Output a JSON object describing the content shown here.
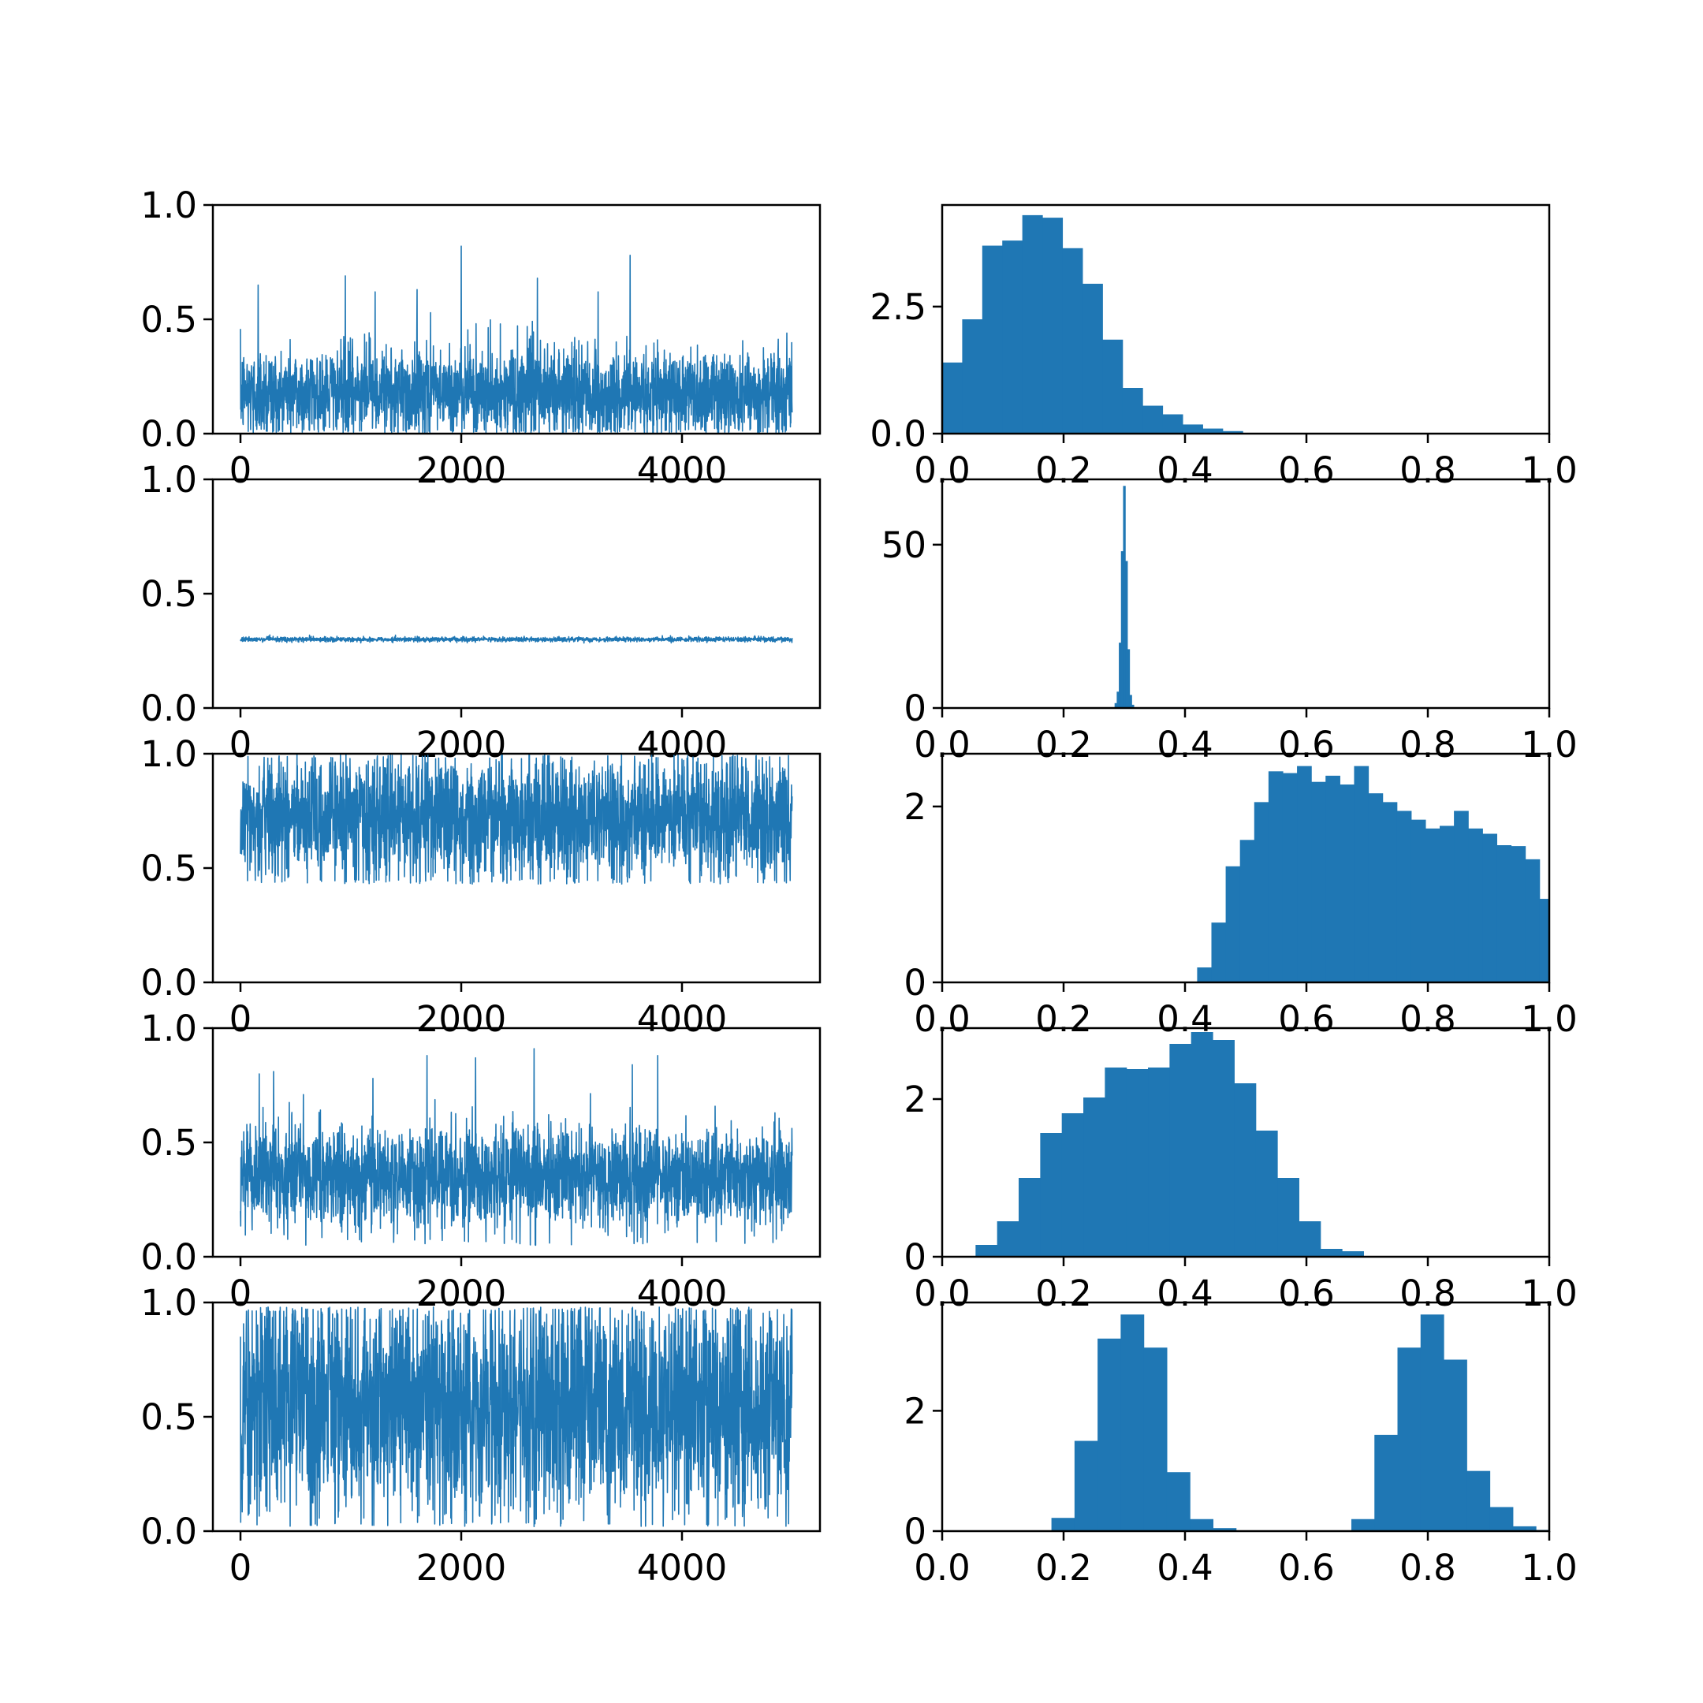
{
  "colors": {
    "series": "#1f77b4",
    "axes": "#000000",
    "background": "#ffffff"
  },
  "chart_data": [
    {
      "type": "line",
      "row": 0,
      "title": "",
      "xlabel": "",
      "ylabel": "",
      "xlim": [
        -250,
        5250
      ],
      "ylim": [
        0,
        1
      ],
      "grid": false,
      "xticks": [
        0,
        2000,
        4000
      ],
      "yticks": [
        0.0,
        0.5,
        1.0
      ],
      "xtick_labels": [
        "0",
        "2000",
        "4000"
      ],
      "ytick_labels": [
        "0.0",
        "0.5",
        "1.0"
      ],
      "n_samples": 5000,
      "trace_mean": 0.18,
      "trace_sd": 0.1,
      "trace_min": 0.0,
      "trace_max": 0.82,
      "spikes": [
        [
          160,
          0.65
        ],
        [
          950,
          0.69
        ],
        [
          1220,
          0.62
        ],
        [
          1600,
          0.63
        ],
        [
          2000,
          0.82
        ],
        [
          2690,
          0.68
        ],
        [
          3240,
          0.62
        ],
        [
          3530,
          0.78
        ],
        [
          4950,
          0.44
        ]
      ]
    },
    {
      "type": "bar",
      "row": 0,
      "title": "",
      "xlabel": "",
      "ylabel": "",
      "xlim": [
        0,
        1
      ],
      "ylim": [
        0,
        4.5
      ],
      "grid": false,
      "xticks": [
        0.0,
        0.2,
        0.4,
        0.6,
        0.8,
        1.0
      ],
      "yticks": [
        0.0,
        2.5
      ],
      "xtick_labels": [
        "0.0",
        "0.2",
        "0.4",
        "0.6",
        "0.8",
        "1.0"
      ],
      "ytick_labels": [
        "0.0",
        "2.5"
      ],
      "bin_edges": [
        0.0,
        0.033,
        0.066,
        0.099,
        0.132,
        0.165,
        0.198,
        0.231,
        0.264,
        0.297,
        0.33,
        0.363,
        0.396,
        0.429,
        0.462,
        0.495
      ],
      "values": [
        1.4,
        2.25,
        3.7,
        3.8,
        4.3,
        4.25,
        3.65,
        2.95,
        1.85,
        0.9,
        0.55,
        0.38,
        0.18,
        0.1,
        0.05
      ]
    },
    {
      "type": "line",
      "row": 1,
      "title": "",
      "xlabel": "",
      "ylabel": "",
      "xlim": [
        -250,
        5250
      ],
      "ylim": [
        0,
        1
      ],
      "grid": false,
      "xticks": [
        0,
        2000,
        4000
      ],
      "yticks": [
        0.0,
        0.5,
        1.0
      ],
      "xtick_labels": [
        "0",
        "2000",
        "4000"
      ],
      "ytick_labels": [
        "0.0",
        "0.5",
        "1.0"
      ],
      "n_samples": 5000,
      "trace_mean": 0.3,
      "trace_sd": 0.005,
      "trace_min": 0.28,
      "trace_max": 0.32,
      "spikes": []
    },
    {
      "type": "bar",
      "row": 1,
      "title": "",
      "xlabel": "",
      "ylabel": "",
      "xlim": [
        0,
        1
      ],
      "ylim": [
        0,
        70
      ],
      "grid": false,
      "xticks": [
        0.0,
        0.2,
        0.4,
        0.6,
        0.8,
        1.0
      ],
      "yticks": [
        0,
        50
      ],
      "xtick_labels": [
        "0.0",
        "0.2",
        "0.4",
        "0.6",
        "0.8",
        "1.0"
      ],
      "ytick_labels": [
        "0",
        "50"
      ],
      "bin_edges": [
        0.284,
        0.2875,
        0.291,
        0.2945,
        0.298,
        0.3015,
        0.305,
        0.3085,
        0.312,
        0.3155
      ],
      "values": [
        1.5,
        5,
        20,
        48,
        68,
        45,
        18,
        4,
        1
      ]
    },
    {
      "type": "line",
      "row": 2,
      "title": "",
      "xlabel": "",
      "ylabel": "",
      "xlim": [
        -250,
        5250
      ],
      "ylim": [
        0,
        1
      ],
      "grid": false,
      "xticks": [
        0,
        2000,
        4000
      ],
      "yticks": [
        0.0,
        0.5,
        1.0
      ],
      "xtick_labels": [
        "0",
        "2000",
        "4000"
      ],
      "ytick_labels": [
        "0.0",
        "0.5",
        "1.0"
      ],
      "n_samples": 5000,
      "trace_mean": 0.72,
      "trace_sd": 0.14,
      "trace_min": 0.43,
      "trace_max": 1.0,
      "spikes": []
    },
    {
      "type": "bar",
      "row": 2,
      "title": "",
      "xlabel": "",
      "ylabel": "",
      "xlim": [
        0,
        1
      ],
      "ylim": [
        0,
        2.6
      ],
      "grid": false,
      "xticks": [
        0.0,
        0.2,
        0.4,
        0.6,
        0.8,
        1.0
      ],
      "yticks": [
        0,
        2
      ],
      "xtick_labels": [
        "0.0",
        "0.2",
        "0.4",
        "0.6",
        "0.8",
        "1.0"
      ],
      "ytick_labels": [
        "0",
        "2"
      ],
      "bin_edges": [
        0.42,
        0.4435,
        0.467,
        0.4905,
        0.514,
        0.5375,
        0.561,
        0.5845,
        0.608,
        0.6315,
        0.655,
        0.6785,
        0.702,
        0.7255,
        0.749,
        0.7725,
        0.796,
        0.8195,
        0.843,
        0.8665,
        0.89,
        0.9135,
        0.937,
        0.9605,
        0.984,
        1.0
      ],
      "values": [
        0.17,
        0.68,
        1.32,
        1.62,
        2.05,
        2.4,
        2.38,
        2.46,
        2.28,
        2.35,
        2.25,
        2.46,
        2.15,
        2.05,
        1.95,
        1.85,
        1.75,
        1.78,
        1.95,
        1.75,
        1.69,
        1.56,
        1.55,
        1.4,
        0.95
      ]
    },
    {
      "type": "line",
      "row": 3,
      "title": "",
      "xlabel": "",
      "ylabel": "",
      "xlim": [
        -250,
        5250
      ],
      "ylim": [
        0,
        1
      ],
      "grid": false,
      "xticks": [
        0,
        2000,
        4000
      ],
      "yticks": [
        0.0,
        0.5,
        1.0
      ],
      "xtick_labels": [
        "0",
        "2000",
        "4000"
      ],
      "ytick_labels": [
        "0.0",
        "0.5",
        "1.0"
      ],
      "n_samples": 5000,
      "trace_mean": 0.35,
      "trace_sd": 0.11,
      "trace_min": 0.05,
      "trace_max": 0.91,
      "spikes": [
        [
          170,
          0.8
        ],
        [
          300,
          0.81
        ],
        [
          1200,
          0.78
        ],
        [
          1690,
          0.88
        ],
        [
          2130,
          0.87
        ],
        [
          2660,
          0.91
        ],
        [
          3550,
          0.84
        ],
        [
          3780,
          0.88
        ]
      ]
    },
    {
      "type": "bar",
      "row": 3,
      "title": "",
      "xlabel": "",
      "ylabel": "",
      "xlim": [
        0,
        1
      ],
      "ylim": [
        0,
        2.9
      ],
      "grid": false,
      "xticks": [
        0.0,
        0.2,
        0.4,
        0.6,
        0.8,
        1.0
      ],
      "yticks": [
        0,
        2
      ],
      "xtick_labels": [
        "0.0",
        "0.2",
        "0.4",
        "0.6",
        "0.8",
        "1.0"
      ],
      "ytick_labels": [
        "0",
        "2"
      ],
      "bin_edges": [
        0.055,
        0.0905,
        0.126,
        0.1615,
        0.197,
        0.2325,
        0.268,
        0.3035,
        0.339,
        0.3745,
        0.41,
        0.4455,
        0.481,
        0.5165,
        0.552,
        0.5875,
        0.623,
        0.6585,
        0.694
      ],
      "values": [
        0.15,
        0.45,
        1.0,
        1.57,
        1.82,
        2.02,
        2.4,
        2.38,
        2.4,
        2.7,
        2.85,
        2.75,
        2.2,
        1.6,
        1.0,
        0.45,
        0.1,
        0.07
      ]
    },
    {
      "type": "line",
      "row": 4,
      "title": "",
      "xlabel": "",
      "ylabel": "",
      "xlim": [
        -250,
        5250
      ],
      "ylim": [
        0,
        1
      ],
      "grid": false,
      "xticks": [
        0,
        2000,
        4000
      ],
      "yticks": [
        0.0,
        0.5,
        1.0
      ],
      "xtick_labels": [
        "0",
        "2000",
        "4000"
      ],
      "ytick_labels": [
        "0.0",
        "0.5",
        "1.0"
      ],
      "n_samples": 5000,
      "trace_mean": 0.56,
      "trace_sd": 0.25,
      "trace_min": 0.02,
      "trace_max": 0.98,
      "spikes": [
        [
          250,
          0.98
        ],
        [
          2660,
          0.02
        ]
      ]
    },
    {
      "type": "bar",
      "row": 4,
      "title": "",
      "xlabel": "",
      "ylabel": "",
      "xlim": [
        0,
        1
      ],
      "ylim": [
        0,
        3.8
      ],
      "grid": false,
      "xticks": [
        0.0,
        0.2,
        0.4,
        0.6,
        0.8,
        1.0
      ],
      "yticks": [
        0,
        2
      ],
      "xtick_labels": [
        "0.0",
        "0.2",
        "0.4",
        "0.6",
        "0.8",
        "1.0"
      ],
      "ytick_labels": [
        "0",
        "2"
      ],
      "bin_edges": [
        0.18,
        0.218,
        0.256,
        0.294,
        0.332,
        0.37,
        0.408,
        0.446,
        0.484,
        0.522,
        0.56,
        0.598,
        0.636,
        0.674,
        0.712,
        0.75,
        0.788,
        0.826,
        0.864,
        0.902,
        0.94,
        0.978,
        0.998
      ],
      "values": [
        0.22,
        1.5,
        3.2,
        3.6,
        3.05,
        0.98,
        0.2,
        0.05,
        0,
        0,
        0,
        0,
        0,
        0.2,
        1.6,
        3.05,
        3.6,
        2.85,
        1.0,
        0.4,
        0.08,
        0.02
      ]
    }
  ]
}
